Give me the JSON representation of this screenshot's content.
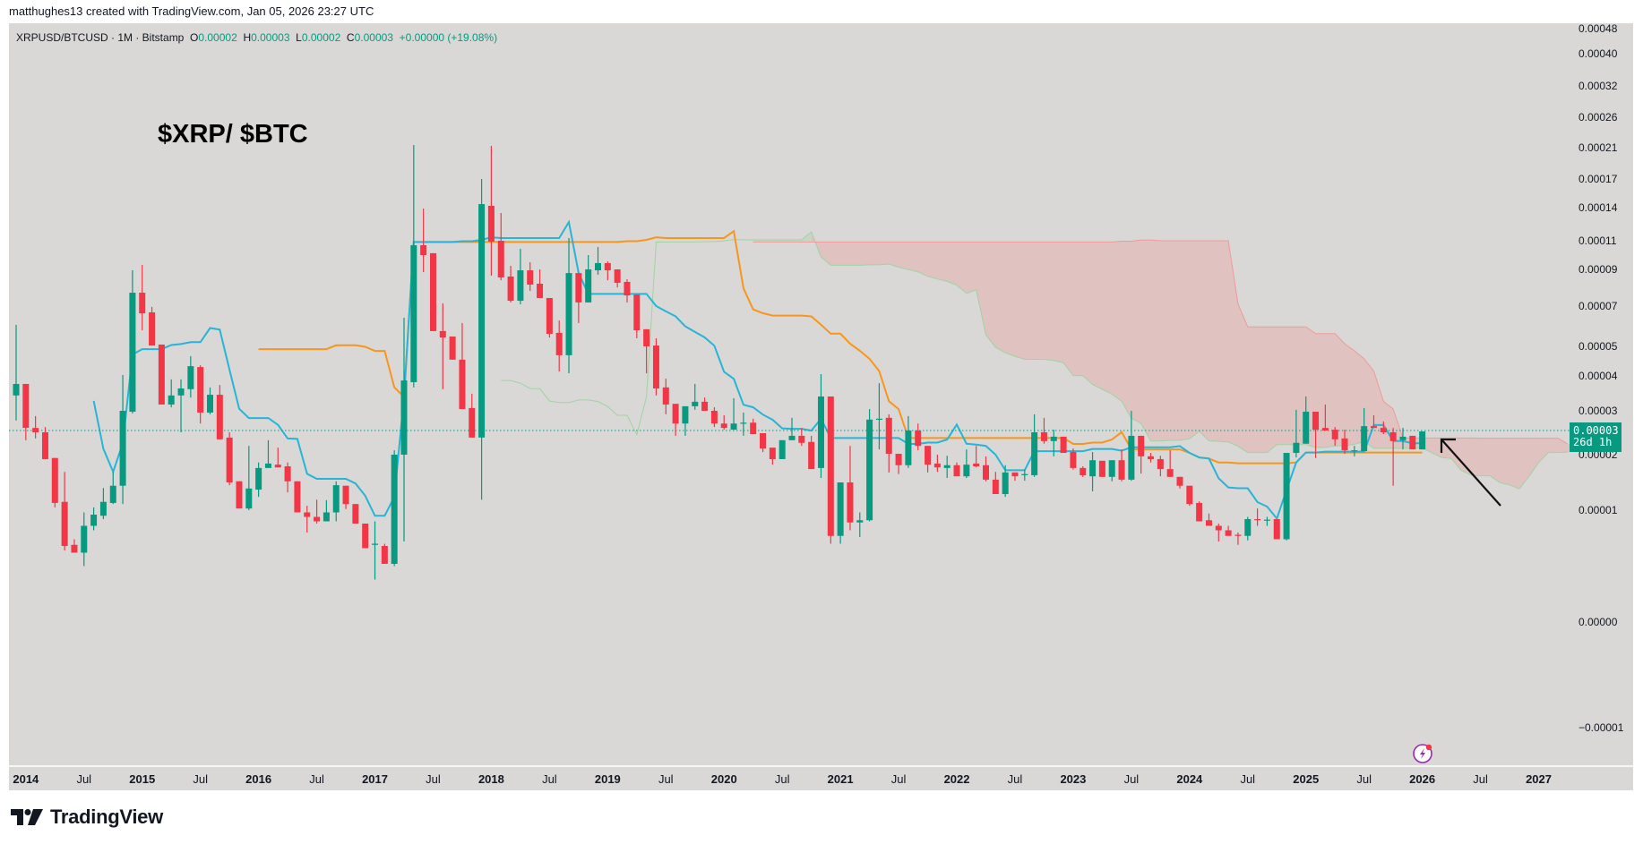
{
  "credit": "matthughes13 created with TradingView.com, Jan 05, 2026 23:27 UTC",
  "legend": {
    "symbol": "XRPUSD/BTCUSD · 1M · Bitstamp",
    "o_label": "O",
    "o_value": "0.00002",
    "h_label": "H",
    "h_value": "0.00003",
    "l_label": "L",
    "l_value": "0.00002",
    "c_label": "C",
    "c_value": "0.00003",
    "change": "+0.00000 (+19.08%)"
  },
  "annotation_title": "$XRP/ $BTC",
  "last_price": {
    "value": "0.00003",
    "countdown": "26d 1h"
  },
  "brand": "TradingView",
  "colors": {
    "up": "#089981",
    "down": "#f23645",
    "conversion_line": "#26b5d6",
    "base_line": "#f7961e",
    "lead_a": "#9fd3a3",
    "lead_b": "#ef9a9a",
    "cloud_up": "rgba(165,214,167,0.35)",
    "cloud_down": "rgba(239,154,154,0.35)",
    "background": "#d9d8d6"
  },
  "icons": {
    "logo": "tradingview-logo",
    "alert": "lightning-icon",
    "annotation": "arrow-icon"
  },
  "chart_data": {
    "type": "candlestick",
    "interval": "1M",
    "scale": "log-like (TradingView)",
    "indicator": {
      "name": "Ichimoku Cloud",
      "conversion": 9,
      "base": 26,
      "lagging_span_b": 52,
      "displacement": 26
    },
    "price_ticks": [
      "0.00048",
      "0.00040",
      "0.00032",
      "0.00026",
      "0.00021",
      "0.00017",
      "0.00014",
      "0.00011",
      "0.00009",
      "0.00007",
      "0.00005",
      "0.00004",
      "0.00003",
      "0.00002",
      "0.00001",
      "0.00000",
      "−0.00001"
    ],
    "time_ticks": [
      {
        "label": "2014",
        "date": "2014-01",
        "year": true
      },
      {
        "label": "Jul",
        "date": "2014-07"
      },
      {
        "label": "2015",
        "date": "2015-01",
        "year": true
      },
      {
        "label": "Jul",
        "date": "2015-07"
      },
      {
        "label": "2016",
        "date": "2016-01",
        "year": true
      },
      {
        "label": "Jul",
        "date": "2016-07"
      },
      {
        "label": "2017",
        "date": "2017-01",
        "year": true
      },
      {
        "label": "Jul",
        "date": "2017-07"
      },
      {
        "label": "2018",
        "date": "2018-01",
        "year": true
      },
      {
        "label": "Jul",
        "date": "2018-07"
      },
      {
        "label": "2019",
        "date": "2019-01",
        "year": true
      },
      {
        "label": "Jul",
        "date": "2019-07"
      },
      {
        "label": "2020",
        "date": "2020-01",
        "year": true
      },
      {
        "label": "Jul",
        "date": "2020-07"
      },
      {
        "label": "2021",
        "date": "2021-01",
        "year": true
      },
      {
        "label": "Jul",
        "date": "2021-07"
      },
      {
        "label": "2022",
        "date": "2022-01",
        "year": true
      },
      {
        "label": "Jul",
        "date": "2022-07"
      },
      {
        "label": "2023",
        "date": "2023-01",
        "year": true
      },
      {
        "label": "Jul",
        "date": "2023-07"
      },
      {
        "label": "2024",
        "date": "2024-01",
        "year": true
      },
      {
        "label": "Jul",
        "date": "2024-07"
      },
      {
        "label": "2025",
        "date": "2025-01",
        "year": true
      },
      {
        "label": "Jul",
        "date": "2025-07"
      },
      {
        "label": "2026",
        "date": "2026-01",
        "year": true
      },
      {
        "label": "Jul",
        "date": "2026-07"
      },
      {
        "label": "2027",
        "date": "2027-01",
        "year": true
      }
    ],
    "last_price": 2.53e-05,
    "candles_fields": [
      "date",
      "open",
      "high",
      "low",
      "close"
    ],
    "candles": [
      [
        "2013-12",
        3.44e-05,
        6.07e-05,
        2.78e-05,
        3.77e-05
      ],
      [
        "2014-01",
        3.77e-05,
        3.77e-05,
        2.33e-05,
        2.61e-05
      ],
      [
        "2014-02",
        2.61e-05,
        2.88e-05,
        2.37e-05,
        2.51e-05
      ],
      [
        "2014-03",
        2.51e-05,
        2.63e-05,
        1.92e-05,
        1.92e-05
      ],
      [
        "2014-04",
        1.94e-05,
        1.94e-05,
        1.05e-05,
        1.13e-05
      ],
      [
        "2014-05",
        1.15e-05,
        1.69e-05,
        6.4e-06,
        6.8e-06
      ],
      [
        "2014-06",
        6.9e-06,
        7.4e-06,
        6.2e-06,
        6.2e-06
      ],
      [
        "2014-07",
        6.2e-06,
        9.8e-06,
        5e-06,
        8.6e-06
      ],
      [
        "2014-08",
        8.6e-06,
        1.05e-05,
        8.2e-06,
        9.6e-06
      ],
      [
        "2014-09",
        9.5e-06,
        1.4e-05,
        9.2e-06,
        1.15e-05
      ],
      [
        "2014-10",
        1.13e-05,
        1.69e-05,
        1.11e-05,
        1.44e-05
      ],
      [
        "2014-11",
        1.44e-05,
        4.03e-05,
        1.11e-05,
        3e-05
      ],
      [
        "2014-12",
        2.98e-05,
        8.95e-05,
        2.94e-05,
        7.73e-05
      ],
      [
        "2015-01",
        7.73e-05,
        9.31e-05,
        5.8e-05,
        6.64e-05
      ],
      [
        "2015-02",
        6.69e-05,
        6.96e-05,
        5.04e-05,
        5.04e-05
      ],
      [
        "2015-03",
        5.09e-05,
        5.09e-05,
        3.18e-05,
        3.18e-05
      ],
      [
        "2015-04",
        3.18e-05,
        3.9e-05,
        3.1e-05,
        3.44e-05
      ],
      [
        "2015-05",
        3.44e-05,
        3.9e-05,
        2.51e-05,
        3.64e-05
      ],
      [
        "2015-06",
        3.62e-05,
        4.67e-05,
        3.38e-05,
        4.33e-05
      ],
      [
        "2015-07",
        4.3e-05,
        4.36e-05,
        2.71e-05,
        2.96e-05
      ],
      [
        "2015-08",
        2.96e-05,
        3.67e-05,
        2.92e-05,
        3.46e-05
      ],
      [
        "2015-09",
        3.46e-05,
        3.74e-05,
        2.35e-05,
        2.35e-05
      ],
      [
        "2015-10",
        2.39e-05,
        2.51e-05,
        1.45e-05,
        1.5e-05
      ],
      [
        "2015-11",
        1.52e-05,
        1.52e-05,
        1.03e-05,
        1.03e-05
      ],
      [
        "2015-12",
        1.03e-05,
        2.2e-05,
        1e-05,
        1.39e-05
      ],
      [
        "2016-01",
        1.37e-05,
        1.86e-05,
        1.24e-05,
        1.76e-05
      ],
      [
        "2016-02",
        1.76e-05,
        2.33e-05,
        1.76e-05,
        1.84e-05
      ],
      [
        "2016-03",
        1.82e-05,
        2.16e-05,
        1.77e-05,
        1.77e-05
      ],
      [
        "2016-04",
        1.79e-05,
        1.86e-05,
        1.32e-05,
        1.52e-05
      ],
      [
        "2016-05",
        1.52e-05,
        1.52e-05,
        9.8e-06,
        9.8e-06
      ],
      [
        "2016-06",
        9.8e-06,
        1.08e-05,
        8e-06,
        9.4e-06
      ],
      [
        "2016-07",
        9.4e-06,
        1.19e-05,
        8.8e-06,
        9e-06
      ],
      [
        "2016-08",
        9e-06,
        1.18e-05,
        9e-06,
        9.8e-06
      ],
      [
        "2016-09",
        9.8e-06,
        1.52e-05,
        9e-06,
        1.45e-05
      ],
      [
        "2016-10",
        1.44e-05,
        1.44e-05,
        1.02e-05,
        1.11e-05
      ],
      [
        "2016-11",
        1.11e-05,
        1.11e-05,
        8.8e-06,
        8.8e-06
      ],
      [
        "2016-12",
        8.8e-06,
        8.8e-06,
        6.6e-06,
        6.6e-06
      ],
      [
        "2017-01",
        6.9e-06,
        9e-06,
        3.8e-06,
        7e-06
      ],
      [
        "2017-02",
        6.8e-06,
        7e-06,
        5.2e-06,
        5.2e-06
      ],
      [
        "2017-03",
        5.2e-06,
        2.1e-05,
        5e-06,
        2e-05
      ],
      [
        "2017-04",
        2e-05,
        6.42e-05,
        7.2e-06,
        3.87e-05
      ],
      [
        "2017-05",
        3.82e-05,
        0.0002144,
        3.67e-05,
        0.0001069
      ],
      [
        "2017-06",
        0.0001069,
        0.0001392,
        8.85e-05,
        0.0001
      ],
      [
        "2017-07",
        0.0001013,
        0.0001013,
        5.76e-05,
        5.76e-05
      ],
      [
        "2017-08",
        5.76e-05,
        7.15e-05,
        3.62e-05,
        5.44e-05
      ],
      [
        "2017-09",
        5.49e-05,
        5.49e-05,
        4.55e-05,
        4.55e-05
      ],
      [
        "2017-10",
        4.55e-05,
        6.16e-05,
        3.05e-05,
        3.05e-05
      ],
      [
        "2017-11",
        3.08e-05,
        3.49e-05,
        2.39e-05,
        2.39e-05
      ],
      [
        "2017-12",
        2.39e-05,
        0.00017,
        1.19e-05,
        0.0001437
      ],
      [
        "2018-01",
        0.0001419,
        0.000213,
        8.66e-05,
        0.0001094
      ],
      [
        "2018-02",
        0.00011,
        0.0001351,
        8.41e-05,
        8.56e-05
      ],
      [
        "2018-03",
        8.61e-05,
        9.25e-05,
        7.2e-05,
        7.29e-05
      ],
      [
        "2018-04",
        7.29e-05,
        0.0001044,
        7.1e-05,
        8.95e-05
      ],
      [
        "2018-05",
        8.95e-05,
        9.5e-05,
        7.83e-05,
        8.17e-05
      ],
      [
        "2018-06",
        8.22e-05,
        9e-05,
        7.44e-05,
        7.44e-05
      ],
      [
        "2018-07",
        7.44e-05,
        7.44e-05,
        5.44e-05,
        5.62e-05
      ],
      [
        "2018-08",
        5.67e-05,
        6.29e-05,
        4.15e-05,
        4.7e-05
      ],
      [
        "2018-09",
        4.7e-05,
        0.0001124,
        4.09e-05,
        8.8e-05
      ],
      [
        "2018-10",
        8.8e-05,
        8.8e-05,
        6.16e-05,
        7.2e-05
      ],
      [
        "2018-11",
        7.2e-05,
        0.0001,
        7.2e-05,
        9e-05
      ],
      [
        "2018-12",
        8.95e-05,
        0.0001056,
        8.71e-05,
        9.44e-05
      ],
      [
        "2019-01",
        9.44e-05,
        9.56e-05,
        8.41e-05,
        8.95e-05
      ],
      [
        "2019-02",
        9e-05,
        9e-05,
        8.02e-05,
        8.27e-05
      ],
      [
        "2019-03",
        8.32e-05,
        8.46e-05,
        7.2e-05,
        7.58e-05
      ],
      [
        "2019-04",
        7.63e-05,
        7.63e-05,
        5.4e-05,
        5.8e-05
      ],
      [
        "2019-05",
        5.85e-05,
        5.85e-05,
        4.09e-05,
        5e-05
      ],
      [
        "2019-06",
        5.04e-05,
        5.4e-05,
        3.44e-05,
        3.64e-05
      ],
      [
        "2019-07",
        3.67e-05,
        3.92e-05,
        2.92e-05,
        3.18e-05
      ],
      [
        "2019-08",
        3.2e-05,
        3.2e-05,
        2.43e-05,
        2.71e-05
      ],
      [
        "2019-09",
        2.71e-05,
        3.13e-05,
        2.43e-05,
        3.13e-05
      ],
      [
        "2019-10",
        3.13e-05,
        3.77e-05,
        3.03e-05,
        3.26e-05
      ],
      [
        "2019-11",
        3.26e-05,
        3.38e-05,
        3e-05,
        3e-05
      ],
      [
        "2019-12",
        3e-05,
        3.1e-05,
        2.63e-05,
        2.71e-05
      ],
      [
        "2020-01",
        2.71e-05,
        2.9e-05,
        2.57e-05,
        2.61e-05
      ],
      [
        "2020-02",
        2.57e-05,
        3.36e-05,
        2.57e-05,
        2.71e-05
      ],
      [
        "2020-03",
        2.71e-05,
        2.96e-05,
        2.43e-05,
        2.73e-05
      ],
      [
        "2020-04",
        2.73e-05,
        2.82e-05,
        2.47e-05,
        2.47e-05
      ],
      [
        "2020-05",
        2.49e-05,
        2.49e-05,
        2.06e-05,
        2.14e-05
      ],
      [
        "2020-06",
        2.16e-05,
        2.16e-05,
        1.82e-05,
        1.92e-05
      ],
      [
        "2020-07",
        1.92e-05,
        2.33e-05,
        1.92e-05,
        2.33e-05
      ],
      [
        "2020-08",
        2.33e-05,
        2.84e-05,
        2.33e-05,
        2.43e-05
      ],
      [
        "2020-09",
        2.43e-05,
        2.61e-05,
        2.2e-05,
        2.27e-05
      ],
      [
        "2020-10",
        2.29e-05,
        2.43e-05,
        1.74e-05,
        1.74e-05
      ],
      [
        "2020-11",
        1.76e-05,
        4.06e-05,
        1.58e-05,
        3.41e-05
      ],
      [
        "2020-12",
        3.41e-05,
        3.41e-05,
        7e-06,
        7.7e-06
      ],
      [
        "2021-01",
        7.7e-06,
        1.5e-05,
        7e-06,
        1.5e-05
      ],
      [
        "2021-02",
        1.5e-05,
        2.2e-05,
        8.2e-06,
        8.9e-06
      ],
      [
        "2021-03",
        8.9e-06,
        9.8e-06,
        7.6e-06,
        9.1e-06
      ],
      [
        "2021-04",
        9.1e-06,
        3.05e-05,
        9e-06,
        2.8e-05
      ],
      [
        "2021-05",
        2.8e-05,
        3.79e-05,
        2.12e-05,
        2.82e-05
      ],
      [
        "2021-06",
        2.84e-05,
        2.92e-05,
        1.68e-05,
        2.02e-05
      ],
      [
        "2021-07",
        2.02e-05,
        2.02e-05,
        1.65e-05,
        1.81e-05
      ],
      [
        "2021-08",
        1.81e-05,
        2.88e-05,
        1.76e-05,
        2.55e-05
      ],
      [
        "2021-09",
        2.55e-05,
        2.71e-05,
        2.1e-05,
        2.2e-05
      ],
      [
        "2021-10",
        2.2e-05,
        2.2e-05,
        1.68e-05,
        1.82e-05
      ],
      [
        "2021-11",
        1.84e-05,
        2e-05,
        1.69e-05,
        1.77e-05
      ],
      [
        "2021-12",
        1.76e-05,
        1.98e-05,
        1.58e-05,
        1.81e-05
      ],
      [
        "2022-01",
        1.81e-05,
        1.86e-05,
        1.61e-05,
        1.61e-05
      ],
      [
        "2022-02",
        1.61e-05,
        2.12e-05,
        1.58e-05,
        1.82e-05
      ],
      [
        "2022-03",
        1.84e-05,
        2.2e-05,
        1.77e-05,
        1.79e-05
      ],
      [
        "2022-04",
        1.81e-05,
        1.97e-05,
        1.52e-05,
        1.55e-05
      ],
      [
        "2022-05",
        1.55e-05,
        1.69e-05,
        1.29e-05,
        1.29e-05
      ],
      [
        "2022-06",
        1.29e-05,
        1.81e-05,
        1.24e-05,
        1.68e-05
      ],
      [
        "2022-07",
        1.68e-05,
        1.68e-05,
        1.53e-05,
        1.61e-05
      ],
      [
        "2022-08",
        1.63e-05,
        1.73e-05,
        1.53e-05,
        1.65e-05
      ],
      [
        "2022-09",
        1.63e-05,
        2.92e-05,
        1.6e-05,
        2.51e-05
      ],
      [
        "2022-10",
        2.51e-05,
        2.84e-05,
        2.25e-05,
        2.31e-05
      ],
      [
        "2022-11",
        2.31e-05,
        2.57e-05,
        1.97e-05,
        2.41e-05
      ],
      [
        "2022-12",
        2.41e-05,
        2.41e-05,
        2.04e-05,
        2.04e-05
      ],
      [
        "2023-01",
        2.06e-05,
        2.14e-05,
        1.73e-05,
        1.76e-05
      ],
      [
        "2023-02",
        1.76e-05,
        1.79e-05,
        1.6e-05,
        1.63e-05
      ],
      [
        "2023-03",
        1.61e-05,
        2.06e-05,
        1.34e-05,
        1.9e-05
      ],
      [
        "2023-04",
        1.89e-05,
        1.89e-05,
        1.6e-05,
        1.6e-05
      ],
      [
        "2023-05",
        1.6e-05,
        1.9e-05,
        1.52e-05,
        1.9e-05
      ],
      [
        "2023-06",
        1.9e-05,
        2.12e-05,
        1.52e-05,
        1.55e-05
      ],
      [
        "2023-07",
        1.55e-05,
        3e-05,
        1.53e-05,
        2.43e-05
      ],
      [
        "2023-08",
        2.43e-05,
        2.43e-05,
        1.66e-05,
        1.97e-05
      ],
      [
        "2023-09",
        1.97e-05,
        2.04e-05,
        1.86e-05,
        1.92e-05
      ],
      [
        "2023-10",
        1.92e-05,
        1.98e-05,
        1.61e-05,
        1.74e-05
      ],
      [
        "2023-11",
        1.74e-05,
        2.1e-05,
        1.6e-05,
        1.6e-05
      ],
      [
        "2023-12",
        1.6e-05,
        1.6e-05,
        1.39e-05,
        1.44e-05
      ],
      [
        "2024-01",
        1.44e-05,
        1.44e-05,
        1.08e-05,
        1.11e-05
      ],
      [
        "2024-02",
        1.13e-05,
        1.16e-05,
        9e-06,
        9e-06
      ],
      [
        "2024-03",
        9.1e-06,
        9.7e-06,
        8.6e-06,
        8.6e-06
      ],
      [
        "2024-04",
        8.6e-06,
        8.8e-06,
        7.2e-06,
        8.2e-06
      ],
      [
        "2024-05",
        8.2e-06,
        8.6e-06,
        7.7e-06,
        7.7e-06
      ],
      [
        "2024-06",
        7.8e-06,
        8e-06,
        6.9e-06,
        7.7e-06
      ],
      [
        "2024-07",
        7.7e-06,
        9.4e-06,
        7.3e-06,
        9.2e-06
      ],
      [
        "2024-08",
        9.2e-06,
        1.03e-05,
        8.6e-06,
        9.1e-06
      ],
      [
        "2024-09",
        9.1e-06,
        9.4e-06,
        8.6e-06,
        9.15e-06
      ],
      [
        "2024-10",
        9.2e-06,
        9.2e-06,
        7.4e-06,
        7.4e-06
      ],
      [
        "2024-11",
        7.4e-06,
        2.04e-05,
        7.3e-06,
        2.04e-05
      ],
      [
        "2024-12",
        2.04e-05,
        3.03e-05,
        1.95e-05,
        2.27e-05
      ],
      [
        "2025-01",
        2.25e-05,
        3.41e-05,
        2.25e-05,
        2.98e-05
      ],
      [
        "2025-02",
        2.98e-05,
        2.98e-05,
        1.94e-05,
        2.57e-05
      ],
      [
        "2025-03",
        2.61e-05,
        3.18e-05,
        2.55e-05,
        2.55e-05
      ],
      [
        "2025-04",
        2.57e-05,
        2.63e-05,
        2.2e-05,
        2.35e-05
      ],
      [
        "2025-05",
        2.37e-05,
        2.57e-05,
        2.02e-05,
        2.1e-05
      ],
      [
        "2025-06",
        2.08e-05,
        2.2e-05,
        1.97e-05,
        2.1e-05
      ],
      [
        "2025-07",
        2.08e-05,
        3.08e-05,
        2.08e-05,
        2.65e-05
      ],
      [
        "2025-08",
        2.65e-05,
        2.9e-05,
        2.61e-05,
        2.61e-05
      ],
      [
        "2025-09",
        2.61e-05,
        2.76e-05,
        2.47e-05,
        2.51e-05
      ],
      [
        "2025-10",
        2.51e-05,
        2.61e-05,
        1.44e-05,
        2.31e-05
      ],
      [
        "2025-11",
        2.33e-05,
        2.61e-05,
        2.12e-05,
        2.41e-05
      ],
      [
        "2025-12",
        2.43e-05,
        2.43e-05,
        2.12e-05,
        2.12e-05
      ],
      [
        "2026-01",
        2.12e-05,
        2.53e-05,
        2.12e-05,
        2.53e-05
      ]
    ]
  }
}
